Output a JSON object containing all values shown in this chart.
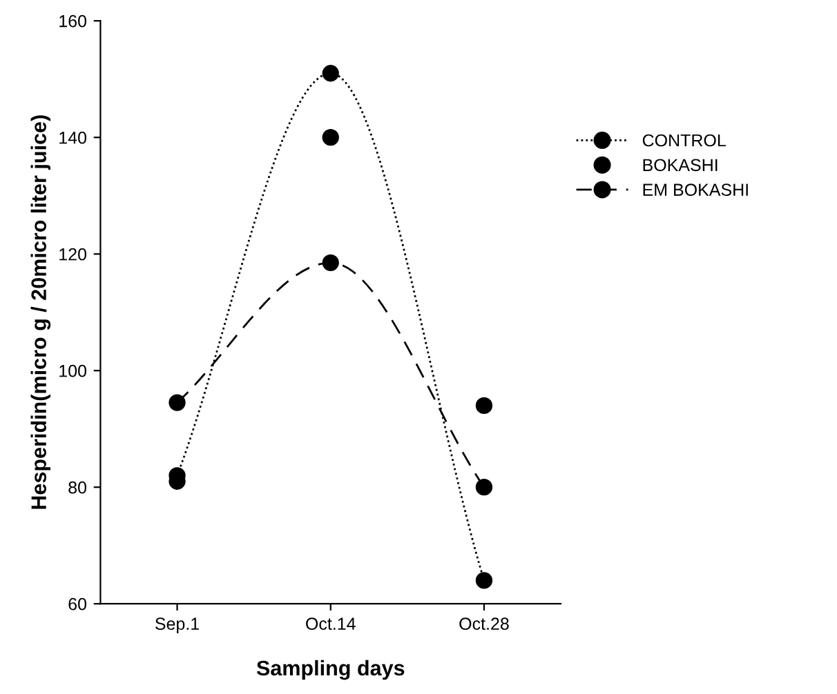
{
  "chart_data": {
    "type": "line",
    "xlabel": "Sampling days",
    "ylabel": "Hesperidin(micro g / 20micro liter juice)",
    "categories": [
      "Sep.1",
      "Oct.14",
      "Oct.28"
    ],
    "series": [
      {
        "name": "CONTROL",
        "color": "#000000",
        "values": [
          82,
          151,
          64
        ],
        "line_style": "dotted",
        "marker": "circle"
      },
      {
        "name": "BOKASHI",
        "color": "#000000",
        "values": [
          81,
          140,
          94
        ],
        "type": "scatter",
        "marker": "circle"
      },
      {
        "name": "EM BOKASHI",
        "color": "#000000",
        "values": [
          94.5,
          118.5,
          80
        ],
        "line_style": "dashed",
        "marker": "circle"
      }
    ],
    "ylim": [
      60,
      160
    ],
    "yticks": [
      60,
      80,
      100,
      120,
      140,
      160
    ],
    "grid": false,
    "legend": "right"
  }
}
